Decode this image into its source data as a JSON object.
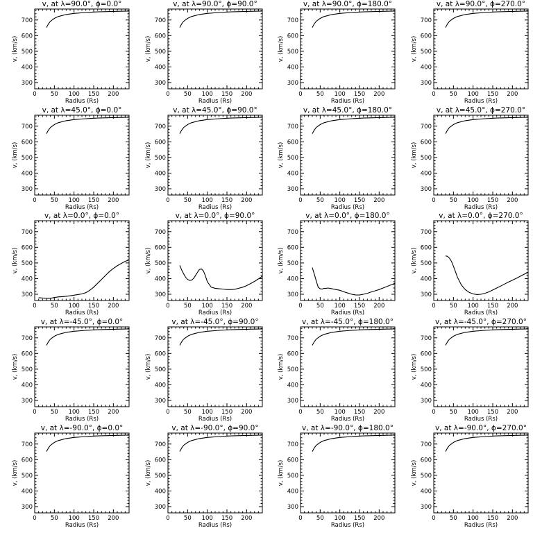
{
  "chart_data": [
    {
      "type": "line",
      "title": "v, at λ=90.0°, ϕ=0.0°",
      "xlabel": "Radius (Rs)",
      "ylabel": "v, (km/s)",
      "xlim": [
        0,
        240
      ],
      "ylim": [
        260,
        770
      ],
      "xticks": [
        0,
        50,
        100,
        150,
        200
      ],
      "yticks": [
        300,
        400,
        500,
        600,
        700
      ],
      "x": [
        30,
        35,
        40,
        50,
        60,
        80,
        100,
        130,
        160,
        200,
        240
      ],
      "y": [
        652,
        675,
        692,
        710,
        722,
        735,
        742,
        748,
        752,
        755,
        757
      ]
    },
    {
      "type": "line",
      "title": "v, at λ=90.0°, ϕ=90.0°",
      "xlabel": "Radius (Rs)",
      "ylabel": "v, (km/s)",
      "xlim": [
        0,
        240
      ],
      "ylim": [
        260,
        770
      ],
      "xticks": [
        0,
        50,
        100,
        150,
        200
      ],
      "yticks": [
        300,
        400,
        500,
        600,
        700
      ],
      "x": [
        30,
        35,
        40,
        50,
        60,
        80,
        100,
        130,
        160,
        200,
        240
      ],
      "y": [
        652,
        675,
        692,
        710,
        722,
        735,
        742,
        748,
        752,
        755,
        757
      ]
    },
    {
      "type": "line",
      "title": "v, at λ=90.0°, ϕ=180.0°",
      "xlabel": "Radius (Rs)",
      "ylabel": "v, (km/s)",
      "xlim": [
        0,
        240
      ],
      "ylim": [
        260,
        770
      ],
      "xticks": [
        0,
        50,
        100,
        150,
        200
      ],
      "yticks": [
        300,
        400,
        500,
        600,
        700
      ],
      "x": [
        30,
        35,
        40,
        50,
        60,
        80,
        100,
        130,
        160,
        200,
        240
      ],
      "y": [
        652,
        675,
        692,
        710,
        722,
        735,
        742,
        748,
        752,
        755,
        757
      ]
    },
    {
      "type": "line",
      "title": "v, at λ=90.0°, ϕ=270.0°",
      "xlabel": "Radius (Rs)",
      "ylabel": "v, (km/s)",
      "xlim": [
        0,
        240
      ],
      "ylim": [
        260,
        770
      ],
      "xticks": [
        0,
        50,
        100,
        150,
        200
      ],
      "yticks": [
        300,
        400,
        500,
        600,
        700
      ],
      "x": [
        30,
        35,
        40,
        50,
        60,
        80,
        100,
        130,
        160,
        200,
        240
      ],
      "y": [
        652,
        675,
        692,
        710,
        722,
        735,
        742,
        748,
        752,
        755,
        757
      ]
    },
    {
      "type": "line",
      "title": "v, at λ=45.0°, ϕ=0.0°",
      "xlabel": "Radius (Rs)",
      "ylabel": "v, (km/s)",
      "xlim": [
        0,
        240
      ],
      "ylim": [
        260,
        770
      ],
      "xticks": [
        0,
        50,
        100,
        150,
        200
      ],
      "yticks": [
        300,
        400,
        500,
        600,
        700
      ],
      "x": [
        30,
        35,
        40,
        50,
        60,
        80,
        100,
        130,
        160,
        200,
        240
      ],
      "y": [
        652,
        675,
        692,
        710,
        722,
        735,
        742,
        748,
        752,
        755,
        757
      ]
    },
    {
      "type": "line",
      "title": "v, at λ=45.0°, ϕ=90.0°",
      "xlabel": "Radius (Rs)",
      "ylabel": "v, (km/s)",
      "xlim": [
        0,
        240
      ],
      "ylim": [
        260,
        770
      ],
      "xticks": [
        0,
        50,
        100,
        150,
        200
      ],
      "yticks": [
        300,
        400,
        500,
        600,
        700
      ],
      "x": [
        30,
        35,
        40,
        50,
        60,
        80,
        100,
        130,
        160,
        200,
        240
      ],
      "y": [
        652,
        675,
        692,
        710,
        722,
        735,
        742,
        748,
        752,
        755,
        757
      ]
    },
    {
      "type": "line",
      "title": "v, at λ=45.0°, ϕ=180.0°",
      "xlabel": "Radius (Rs)",
      "ylabel": "v, (km/s)",
      "xlim": [
        0,
        240
      ],
      "ylim": [
        260,
        770
      ],
      "xticks": [
        0,
        50,
        100,
        150,
        200
      ],
      "yticks": [
        300,
        400,
        500,
        600,
        700
      ],
      "x": [
        30,
        35,
        40,
        50,
        60,
        80,
        100,
        130,
        160,
        200,
        240
      ],
      "y": [
        652,
        675,
        692,
        710,
        722,
        735,
        742,
        748,
        752,
        755,
        757
      ]
    },
    {
      "type": "line",
      "title": "v, at λ=45.0°, ϕ=270.0°",
      "xlabel": "Radius (Rs)",
      "ylabel": "v, (km/s)",
      "xlim": [
        0,
        240
      ],
      "ylim": [
        260,
        770
      ],
      "xticks": [
        0,
        50,
        100,
        150,
        200
      ],
      "yticks": [
        300,
        400,
        500,
        600,
        700
      ],
      "x": [
        30,
        35,
        40,
        50,
        60,
        80,
        100,
        130,
        160,
        200,
        240
      ],
      "y": [
        652,
        675,
        692,
        710,
        722,
        735,
        742,
        748,
        752,
        755,
        757
      ]
    },
    {
      "type": "line",
      "title": "v, at λ=0.0°, ϕ=0.0°",
      "xlabel": "Radius (Rs)",
      "ylabel": "v, (km/s)",
      "xlim": [
        0,
        240
      ],
      "ylim": [
        260,
        770
      ],
      "xticks": [
        0,
        50,
        100,
        150,
        200
      ],
      "yticks": [
        300,
        400,
        500,
        600,
        700
      ],
      "x": [
        10,
        20,
        30,
        40,
        50,
        60,
        70,
        80,
        90,
        100,
        110,
        120,
        130,
        140,
        150,
        160,
        170,
        180,
        190,
        200,
        210,
        220,
        230,
        240
      ],
      "y": [
        278,
        276,
        274,
        274,
        279,
        283,
        285,
        287,
        290,
        294,
        298,
        302,
        310,
        325,
        345,
        370,
        395,
        420,
        445,
        465,
        482,
        497,
        510,
        520
      ]
    },
    {
      "type": "line",
      "title": "v, at λ=0.0°, ϕ=90.0°",
      "xlabel": "Radius (Rs)",
      "ylabel": "v, (km/s)",
      "xlim": [
        0,
        240
      ],
      "ylim": [
        260,
        770
      ],
      "xticks": [
        0,
        50,
        100,
        150,
        200
      ],
      "yticks": [
        300,
        400,
        500,
        600,
        700
      ],
      "x": [
        30,
        35,
        40,
        45,
        50,
        55,
        60,
        65,
        70,
        75,
        80,
        85,
        90,
        95,
        100,
        110,
        120,
        130,
        140,
        150,
        160,
        170,
        180,
        190,
        200,
        210,
        220,
        230,
        240
      ],
      "y": [
        485,
        455,
        430,
        408,
        395,
        388,
        390,
        400,
        420,
        440,
        458,
        462,
        450,
        420,
        380,
        345,
        338,
        335,
        333,
        330,
        330,
        332,
        338,
        345,
        355,
        368,
        382,
        398,
        415
      ]
    },
    {
      "type": "line",
      "title": "v, at λ=0.0°, ϕ=180.0°",
      "xlabel": "Radius (Rs)",
      "ylabel": "v, (km/s)",
      "xlim": [
        0,
        240
      ],
      "ylim": [
        260,
        770
      ],
      "xticks": [
        0,
        50,
        100,
        150,
        200
      ],
      "yticks": [
        300,
        400,
        500,
        600,
        700
      ],
      "x": [
        30,
        35,
        40,
        45,
        50,
        55,
        60,
        65,
        70,
        80,
        90,
        100,
        110,
        120,
        130,
        140,
        150,
        160,
        170,
        180,
        190,
        200,
        210,
        220,
        230,
        240
      ],
      "y": [
        470,
        430,
        385,
        345,
        335,
        333,
        338,
        338,
        340,
        335,
        330,
        325,
        316,
        308,
        300,
        296,
        295,
        300,
        306,
        315,
        322,
        330,
        340,
        350,
        360,
        370
      ]
    },
    {
      "type": "line",
      "title": "v, at λ=0.0°, ϕ=270.0°",
      "xlabel": "Radius (Rs)",
      "ylabel": "v, (km/s)",
      "xlim": [
        0,
        240
      ],
      "ylim": [
        260,
        770
      ],
      "xticks": [
        0,
        50,
        100,
        150,
        200
      ],
      "yticks": [
        300,
        400,
        500,
        600,
        700
      ],
      "x": [
        30,
        35,
        40,
        45,
        50,
        55,
        60,
        70,
        80,
        90,
        100,
        110,
        120,
        130,
        140,
        150,
        160,
        170,
        180,
        190,
        200,
        210,
        220,
        230,
        240
      ],
      "y": [
        545,
        542,
        530,
        510,
        480,
        445,
        410,
        360,
        330,
        312,
        302,
        298,
        300,
        306,
        315,
        327,
        340,
        352,
        365,
        378,
        390,
        402,
        415,
        428,
        440
      ]
    },
    {
      "type": "line",
      "title": "v, at λ=-45.0°, ϕ=0.0°",
      "xlabel": "Radius (Rs)",
      "ylabel": "v, (km/s)",
      "xlim": [
        0,
        240
      ],
      "ylim": [
        260,
        770
      ],
      "xticks": [
        0,
        50,
        100,
        150,
        200
      ],
      "yticks": [
        300,
        400,
        500,
        600,
        700
      ],
      "x": [
        30,
        35,
        40,
        50,
        60,
        80,
        100,
        130,
        160,
        200,
        240
      ],
      "y": [
        652,
        675,
        692,
        710,
        722,
        735,
        742,
        748,
        752,
        755,
        757
      ]
    },
    {
      "type": "line",
      "title": "v, at λ=-45.0°, ϕ=90.0°",
      "xlabel": "Radius (Rs)",
      "ylabel": "v, (km/s)",
      "xlim": [
        0,
        240
      ],
      "ylim": [
        260,
        770
      ],
      "xticks": [
        0,
        50,
        100,
        150,
        200
      ],
      "yticks": [
        300,
        400,
        500,
        600,
        700
      ],
      "x": [
        30,
        35,
        40,
        50,
        60,
        80,
        100,
        130,
        160,
        200,
        240
      ],
      "y": [
        652,
        675,
        692,
        710,
        722,
        735,
        742,
        748,
        752,
        755,
        757
      ]
    },
    {
      "type": "line",
      "title": "v, at λ=-45.0°, ϕ=180.0°",
      "xlabel": "Radius (Rs)",
      "ylabel": "v, (km/s)",
      "xlim": [
        0,
        240
      ],
      "ylim": [
        260,
        770
      ],
      "xticks": [
        0,
        50,
        100,
        150,
        200
      ],
      "yticks": [
        300,
        400,
        500,
        600,
        700
      ],
      "x": [
        30,
        35,
        40,
        50,
        60,
        80,
        100,
        130,
        160,
        200,
        240
      ],
      "y": [
        652,
        675,
        692,
        710,
        722,
        735,
        742,
        748,
        752,
        755,
        757
      ]
    },
    {
      "type": "line",
      "title": "v, at λ=-45.0°, ϕ=270.0°",
      "xlabel": "Radius (Rs)",
      "ylabel": "v, (km/s)",
      "xlim": [
        0,
        240
      ],
      "ylim": [
        260,
        770
      ],
      "xticks": [
        0,
        50,
        100,
        150,
        200
      ],
      "yticks": [
        300,
        400,
        500,
        600,
        700
      ],
      "x": [
        30,
        35,
        40,
        50,
        60,
        80,
        100,
        130,
        160,
        200,
        240
      ],
      "y": [
        652,
        675,
        692,
        710,
        722,
        735,
        742,
        748,
        752,
        755,
        757
      ]
    },
    {
      "type": "line",
      "title": "v, at λ=-90.0°, ϕ=0.0°",
      "xlabel": "Radius (Rs)",
      "ylabel": "v, (km/s)",
      "xlim": [
        0,
        240
      ],
      "ylim": [
        260,
        770
      ],
      "xticks": [
        0,
        50,
        100,
        150,
        200
      ],
      "yticks": [
        300,
        400,
        500,
        600,
        700
      ],
      "x": [
        30,
        35,
        40,
        50,
        60,
        80,
        100,
        130,
        160,
        200,
        240
      ],
      "y": [
        652,
        675,
        692,
        710,
        722,
        735,
        742,
        748,
        752,
        755,
        757
      ]
    },
    {
      "type": "line",
      "title": "v, at λ=-90.0°, ϕ=90.0°",
      "xlabel": "Radius (Rs)",
      "ylabel": "v, (km/s)",
      "xlim": [
        0,
        240
      ],
      "ylim": [
        260,
        770
      ],
      "xticks": [
        0,
        50,
        100,
        150,
        200
      ],
      "yticks": [
        300,
        400,
        500,
        600,
        700
      ],
      "x": [
        30,
        35,
        40,
        50,
        60,
        80,
        100,
        130,
        160,
        200,
        240
      ],
      "y": [
        652,
        675,
        692,
        710,
        722,
        735,
        742,
        748,
        752,
        755,
        757
      ]
    },
    {
      "type": "line",
      "title": "v, at λ=-90.0°, ϕ=180.0°",
      "xlabel": "Radius (Rs)",
      "ylabel": "v, (km/s)",
      "xlim": [
        0,
        240
      ],
      "ylim": [
        260,
        770
      ],
      "xticks": [
        0,
        50,
        100,
        150,
        200
      ],
      "yticks": [
        300,
        400,
        500,
        600,
        700
      ],
      "x": [
        30,
        35,
        40,
        50,
        60,
        80,
        100,
        130,
        160,
        200,
        240
      ],
      "y": [
        652,
        675,
        692,
        710,
        722,
        735,
        742,
        748,
        752,
        755,
        757
      ]
    },
    {
      "type": "line",
      "title": "v, at λ=-90.0°, ϕ=270.0°",
      "xlabel": "Radius (Rs)",
      "ylabel": "v, (km/s)",
      "xlim": [
        0,
        240
      ],
      "ylim": [
        260,
        770
      ],
      "xticks": [
        0,
        50,
        100,
        150,
        200
      ],
      "yticks": [
        300,
        400,
        500,
        600,
        700
      ],
      "x": [
        30,
        35,
        40,
        50,
        60,
        80,
        100,
        130,
        160,
        200,
        240
      ],
      "y": [
        652,
        675,
        692,
        710,
        722,
        735,
        742,
        748,
        752,
        755,
        757
      ]
    }
  ]
}
